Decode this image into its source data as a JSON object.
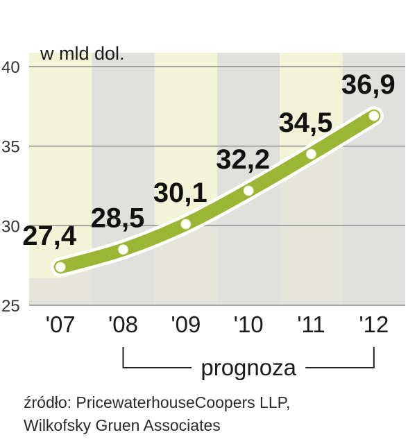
{
  "chart_data": {
    "type": "line",
    "ylabel": "w mld dol.",
    "categories": [
      "'07",
      "'08",
      "'09",
      "'10",
      "'11",
      "'12"
    ],
    "series": [
      {
        "values": [
          27.4,
          28.5,
          30.1,
          32.2,
          34.5,
          36.9
        ]
      }
    ],
    "data_labels": [
      "27,4",
      "28,5",
      "30,1",
      "32,2",
      "34,5",
      "36,9"
    ],
    "yticks": [
      "25",
      "30",
      "35",
      "40"
    ],
    "ytick_values": [
      25,
      30,
      35,
      40
    ],
    "ylim": [
      25,
      40
    ],
    "grid": true,
    "forecast": {
      "label": "prognoza",
      "from": "'08",
      "to": "'12"
    },
    "colors": {
      "line": "#9bb535",
      "band_a": "#f3f3d8",
      "band_b": "#e0e0dd",
      "grid": "#8a8a8a",
      "point": "#ffffff"
    }
  },
  "source": {
    "line1": "źródło: PricewaterhouseCoopers LLP,",
    "line2": "Wilkofsky Gruen Associates"
  }
}
